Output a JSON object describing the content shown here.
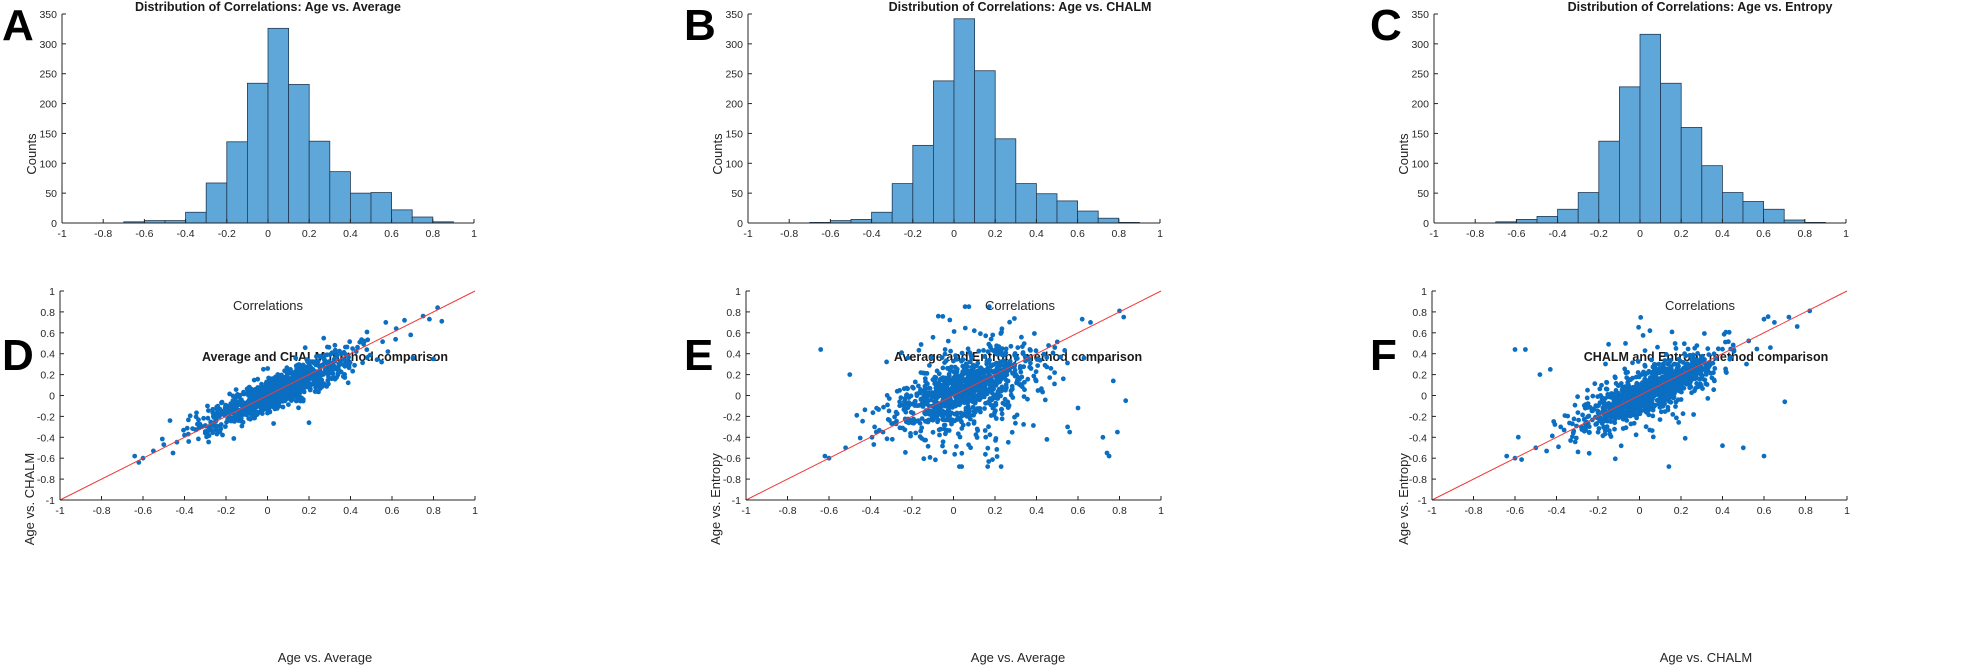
{
  "figure": {
    "panels": [
      "A",
      "B",
      "C",
      "D",
      "E",
      "F"
    ],
    "colors": {
      "bar_fill": "#5fa7d9",
      "bar_edge": "#1f3a55",
      "scatter_point": "#0a6ec2",
      "reference_line": "#ef3b3b",
      "axis": "#262626"
    }
  },
  "chart_data": [
    {
      "panel": "A",
      "type": "bar",
      "title": "Distribution of Correlations: Age vs. Average",
      "xlabel": "Correlations",
      "ylabel": "Counts",
      "xlim": [
        -1,
        1
      ],
      "ylim": [
        0,
        350
      ],
      "xticks": [
        "-1",
        "-0.8",
        "-0.6",
        "-0.4",
        "-0.2",
        "0",
        "0.2",
        "0.4",
        "0.6",
        "0.8",
        "1"
      ],
      "yticks": [
        "0",
        "50",
        "100",
        "150",
        "200",
        "250",
        "300",
        "350"
      ],
      "bin_edges": [
        -0.7,
        -0.6,
        -0.5,
        -0.4,
        -0.3,
        -0.2,
        -0.1,
        0.0,
        0.1,
        0.2,
        0.3,
        0.4,
        0.5,
        0.6,
        0.7,
        0.8,
        0.9
      ],
      "values": [
        2,
        4,
        4,
        18,
        67,
        136,
        234,
        326,
        232,
        137,
        86,
        50,
        51,
        22,
        10,
        2
      ]
    },
    {
      "panel": "B",
      "type": "bar",
      "title": "Distribution of Correlations: Age vs. CHALM",
      "xlabel": "Correlations",
      "ylabel": "Counts",
      "xlim": [
        -1,
        1
      ],
      "ylim": [
        0,
        350
      ],
      "xticks": [
        "-1",
        "-0.8",
        "-0.6",
        "-0.4",
        "-0.2",
        "0",
        "0.2",
        "0.4",
        "0.6",
        "0.8",
        "1"
      ],
      "yticks": [
        "0",
        "50",
        "100",
        "150",
        "200",
        "250",
        "300",
        "350"
      ],
      "bin_edges": [
        -0.7,
        -0.6,
        -0.5,
        -0.4,
        -0.3,
        -0.2,
        -0.1,
        0.0,
        0.1,
        0.2,
        0.3,
        0.4,
        0.5,
        0.6,
        0.7,
        0.8,
        0.9
      ],
      "values": [
        1,
        4,
        6,
        18,
        66,
        130,
        238,
        342,
        255,
        141,
        66,
        49,
        37,
        20,
        8,
        1
      ]
    },
    {
      "panel": "C",
      "type": "bar",
      "title": "Distribution of Correlations: Age vs. Entropy",
      "xlabel": "Correlations",
      "ylabel": "Counts",
      "xlim": [
        -1,
        1
      ],
      "ylim": [
        0,
        350
      ],
      "xticks": [
        "-1",
        "-0.8",
        "-0.6",
        "-0.4",
        "-0.2",
        "0",
        "0.2",
        "0.4",
        "0.6",
        "0.8",
        "1"
      ],
      "yticks": [
        "0",
        "50",
        "100",
        "150",
        "200",
        "250",
        "300",
        "350"
      ],
      "bin_edges": [
        -0.7,
        -0.6,
        -0.5,
        -0.4,
        -0.3,
        -0.2,
        -0.1,
        0.0,
        0.1,
        0.2,
        0.3,
        0.4,
        0.5,
        0.6,
        0.7,
        0.8,
        0.9
      ],
      "values": [
        2,
        6,
        11,
        23,
        51,
        137,
        228,
        316,
        234,
        160,
        96,
        51,
        36,
        23,
        5,
        1
      ]
    },
    {
      "panel": "D",
      "type": "scatter",
      "title": "Average and CHALM method comparison",
      "xlabel": "Age vs. Average",
      "ylabel": "Age vs. CHALM",
      "xlim": [
        -1,
        1
      ],
      "ylim": [
        -1,
        1
      ],
      "xticks": [
        "-1",
        "-0.8",
        "-0.6",
        "-0.4",
        "-0.2",
        "0",
        "0.2",
        "0.4",
        "0.6",
        "0.8",
        "1"
      ],
      "yticks": [
        "-1",
        "-0.8",
        "-0.6",
        "-0.4",
        "-0.2",
        "0",
        "0.2",
        "0.4",
        "0.6",
        "0.8",
        "1"
      ],
      "reference_line": {
        "x": [
          -1,
          1
        ],
        "y": [
          -1,
          1
        ]
      },
      "cloud": {
        "n": 1000,
        "seed": 11,
        "slope": 0.9,
        "noise": 0.085,
        "outlier_frac": 0.0,
        "outlier_noise": 0.0
      },
      "points": [
        {
          "x": -0.64,
          "y": -0.58
        },
        {
          "x": -0.62,
          "y": -0.64
        },
        {
          "x": -0.6,
          "y": -0.6
        },
        {
          "x": -0.55,
          "y": -0.53
        },
        {
          "x": -0.5,
          "y": -0.47
        },
        {
          "x": -0.47,
          "y": -0.24
        },
        {
          "x": -0.4,
          "y": -0.38
        },
        {
          "x": -0.38,
          "y": -0.44
        },
        {
          "x": -0.33,
          "y": -0.31
        },
        {
          "x": -0.3,
          "y": -0.36
        },
        {
          "x": 0.55,
          "y": 0.32
        },
        {
          "x": 0.57,
          "y": 0.7
        },
        {
          "x": 0.62,
          "y": 0.64
        },
        {
          "x": 0.66,
          "y": 0.72
        },
        {
          "x": 0.69,
          "y": 0.58
        },
        {
          "x": 0.7,
          "y": 0.36
        },
        {
          "x": 0.75,
          "y": 0.76
        },
        {
          "x": 0.78,
          "y": 0.73
        },
        {
          "x": 0.8,
          "y": 0.35
        },
        {
          "x": 0.82,
          "y": 0.84
        },
        {
          "x": 0.84,
          "y": 0.71
        },
        {
          "x": 0.58,
          "y": 0.42
        },
        {
          "x": 0.2,
          "y": -0.26
        }
      ]
    },
    {
      "panel": "E",
      "type": "scatter",
      "title": "Average and Entropy method comparison",
      "xlabel": "Age vs. Average",
      "ylabel": "Age vs. Entropy",
      "xlim": [
        -1,
        1
      ],
      "ylim": [
        -1,
        1
      ],
      "xticks": [
        "-1",
        "-0.8",
        "-0.6",
        "-0.4",
        "-0.2",
        "0",
        "0.2",
        "0.4",
        "0.6",
        "0.8",
        "1"
      ],
      "yticks": [
        "-1",
        "-0.8",
        "-0.6",
        "-0.4",
        "-0.2",
        "0",
        "0.2",
        "0.4",
        "0.6",
        "0.8",
        "1"
      ],
      "reference_line": {
        "x": [
          -1,
          1
        ],
        "y": [
          -1,
          1
        ]
      },
      "cloud": {
        "n": 1000,
        "seed": 23,
        "slope": 0.75,
        "noise": 0.15,
        "outlier_frac": 0.14,
        "outlier_noise": 0.38
      },
      "points": [
        {
          "x": -0.64,
          "y": 0.44
        },
        {
          "x": -0.6,
          "y": -0.6
        },
        {
          "x": -0.62,
          "y": -0.58
        },
        {
          "x": -0.52,
          "y": -0.5
        },
        {
          "x": -0.5,
          "y": 0.2
        },
        {
          "x": -0.38,
          "y": -0.3
        },
        {
          "x": -0.34,
          "y": -0.35
        },
        {
          "x": -0.25,
          "y": 0.41
        },
        {
          "x": -0.22,
          "y": 0.36
        },
        {
          "x": 0.55,
          "y": -0.3
        },
        {
          "x": 0.56,
          "y": -0.35
        },
        {
          "x": 0.6,
          "y": -0.12
        },
        {
          "x": 0.62,
          "y": 0.73
        },
        {
          "x": 0.66,
          "y": 0.7
        },
        {
          "x": 0.72,
          "y": -0.4
        },
        {
          "x": 0.74,
          "y": -0.55
        },
        {
          "x": 0.75,
          "y": -0.58
        },
        {
          "x": 0.77,
          "y": 0.14
        },
        {
          "x": 0.79,
          "y": -0.35
        },
        {
          "x": 0.8,
          "y": 0.81
        },
        {
          "x": 0.83,
          "y": -0.05
        },
        {
          "x": 0.82,
          "y": 0.75
        },
        {
          "x": 0.45,
          "y": -0.42
        },
        {
          "x": 0.1,
          "y": 0.62
        }
      ]
    },
    {
      "panel": "F",
      "type": "scatter",
      "title": "CHALM and Entropy method comparison",
      "xlabel": "Age vs. CHALM",
      "ylabel": "Age vs. Entropy",
      "xlim": [
        -1,
        1
      ],
      "ylim": [
        -1,
        1
      ],
      "xticks": [
        "-1",
        "-0.8",
        "-0.6",
        "-0.4",
        "-0.2",
        "0",
        "0.2",
        "0.4",
        "0.6",
        "0.8",
        "1"
      ],
      "yticks": [
        "-1",
        "-0.8",
        "-0.6",
        "-0.4",
        "-0.2",
        "0",
        "0.2",
        "0.4",
        "0.6",
        "0.8",
        "1"
      ],
      "reference_line": {
        "x": [
          -1,
          1
        ],
        "y": [
          -1,
          1
        ]
      },
      "cloud": {
        "n": 1000,
        "seed": 37,
        "slope": 0.85,
        "noise": 0.11,
        "outlier_frac": 0.1,
        "outlier_noise": 0.28
      },
      "points": [
        {
          "x": -0.64,
          "y": -0.58
        },
        {
          "x": -0.6,
          "y": -0.6
        },
        {
          "x": -0.6,
          "y": 0.44
        },
        {
          "x": -0.55,
          "y": 0.44
        },
        {
          "x": -0.5,
          "y": -0.5
        },
        {
          "x": -0.48,
          "y": 0.2
        },
        {
          "x": -0.43,
          "y": 0.25
        },
        {
          "x": -0.38,
          "y": -0.3
        },
        {
          "x": 0.05,
          "y": 0.62
        },
        {
          "x": 0.4,
          "y": -0.48
        },
        {
          "x": 0.5,
          "y": -0.5
        },
        {
          "x": 0.6,
          "y": -0.58
        },
        {
          "x": 0.65,
          "y": 0.7
        },
        {
          "x": 0.7,
          "y": -0.06
        },
        {
          "x": 0.72,
          "y": 0.75
        },
        {
          "x": 0.76,
          "y": 0.66
        },
        {
          "x": 0.82,
          "y": 0.81
        },
        {
          "x": 0.6,
          "y": 0.73
        }
      ]
    }
  ]
}
